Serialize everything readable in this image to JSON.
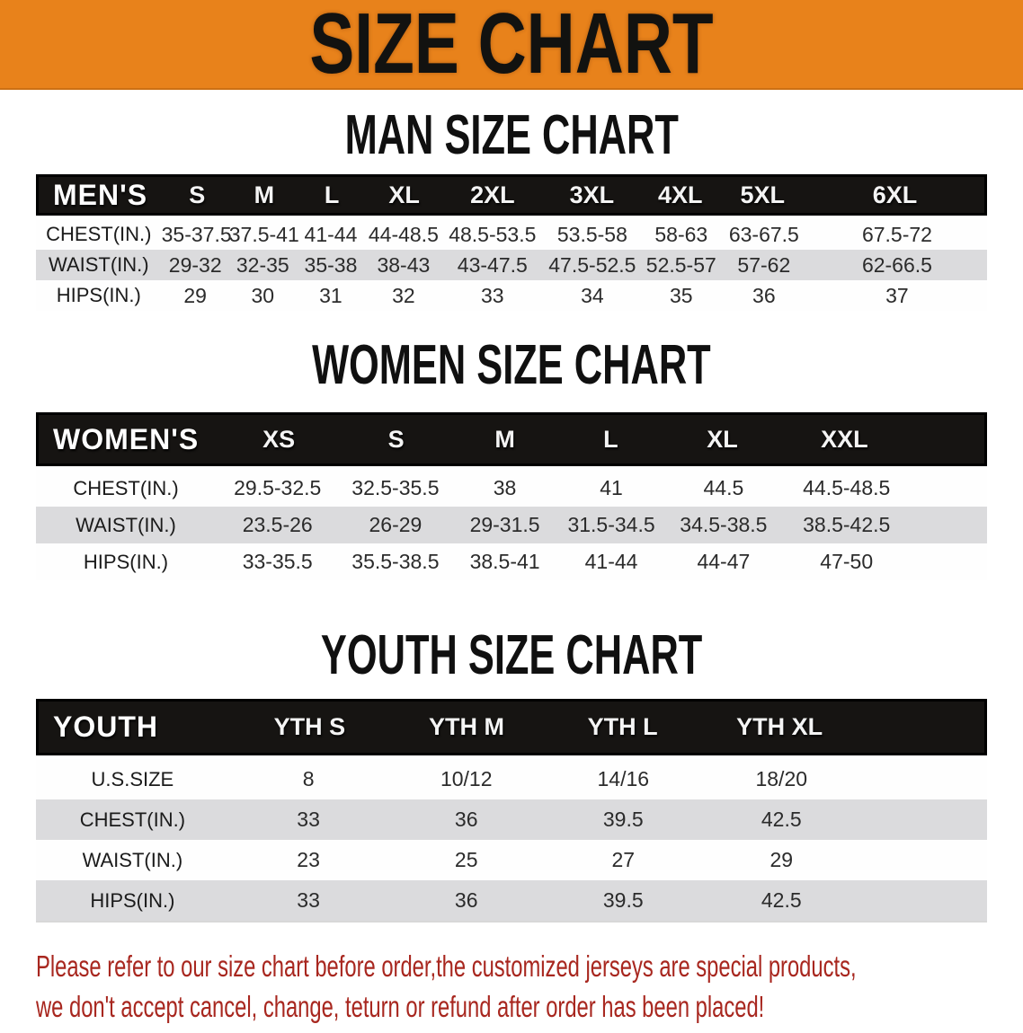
{
  "banner": {
    "title": "SIZE CHART"
  },
  "man": {
    "heading": "MAN SIZE CHART",
    "table": {
      "label": "MEN'S",
      "columns": [
        "S",
        "M",
        "L",
        "XL",
        "2XL",
        "3XL",
        "4XL",
        "5XL",
        "6XL"
      ],
      "rows": [
        {
          "label": "CHEST(IN.)",
          "values": [
            "35-37.5",
            "37.5-41",
            "41-44",
            "44-48.5",
            "48.5-53.5",
            "53.5-58",
            "58-63",
            "63-67.5",
            "67.5-72"
          ]
        },
        {
          "label": "WAIST(IN.)",
          "values": [
            "29-32",
            "32-35",
            "35-38",
            "38-43",
            "43-47.5",
            "47.5-52.5",
            "52.5-57",
            "57-62",
            "62-66.5"
          ]
        },
        {
          "label": "HIPS(IN.)",
          "values": [
            "29",
            "30",
            "31",
            "32",
            "33",
            "34",
            "35",
            "36",
            "37"
          ]
        }
      ]
    }
  },
  "women": {
    "heading": "WOMEN SIZE CHART",
    "table": {
      "label": "WOMEN'S",
      "columns": [
        "XS",
        "S",
        "M",
        "L",
        "XL",
        "XXL"
      ],
      "rows": [
        {
          "label": "CHEST(IN.)",
          "values": [
            "29.5-32.5",
            "32.5-35.5",
            "38",
            "41",
            "44.5",
            "44.5-48.5"
          ]
        },
        {
          "label": "WAIST(IN.)",
          "values": [
            "23.5-26",
            "26-29",
            "29-31.5",
            "31.5-34.5",
            "34.5-38.5",
            "38.5-42.5"
          ]
        },
        {
          "label": "HIPS(IN.)",
          "values": [
            "33-35.5",
            "35.5-38.5",
            "38.5-41",
            "41-44",
            "44-47",
            "47-50"
          ]
        }
      ]
    }
  },
  "youth": {
    "heading": "YOUTH SIZE CHART",
    "table": {
      "label": "YOUTH",
      "columns": [
        "YTH S",
        "YTH M",
        "YTH L",
        "YTH XL"
      ],
      "rows": [
        {
          "label": "U.S.SIZE",
          "values": [
            "8",
            "10/12",
            "14/16",
            "18/20"
          ]
        },
        {
          "label": "CHEST(IN.)",
          "values": [
            "33",
            "36",
            "39.5",
            "42.5"
          ]
        },
        {
          "label": "WAIST(IN.)",
          "values": [
            "23",
            "25",
            "27",
            "29"
          ]
        },
        {
          "label": "HIPS(IN.)",
          "values": [
            "33",
            "36",
            "39.5",
            "42.5"
          ]
        }
      ]
    }
  },
  "footnote": {
    "line1": "Please refer to our size chart before order,the customized jerseys are special products,",
    "line2": "we don't accept cancel, change, teturn or refund after order has been placed!"
  },
  "colors": {
    "banner_bg": "#E8821B",
    "table_header_bg": "#161412",
    "row_alt_gray": "#DBDBDD",
    "footnote_red": "#A8271F"
  }
}
